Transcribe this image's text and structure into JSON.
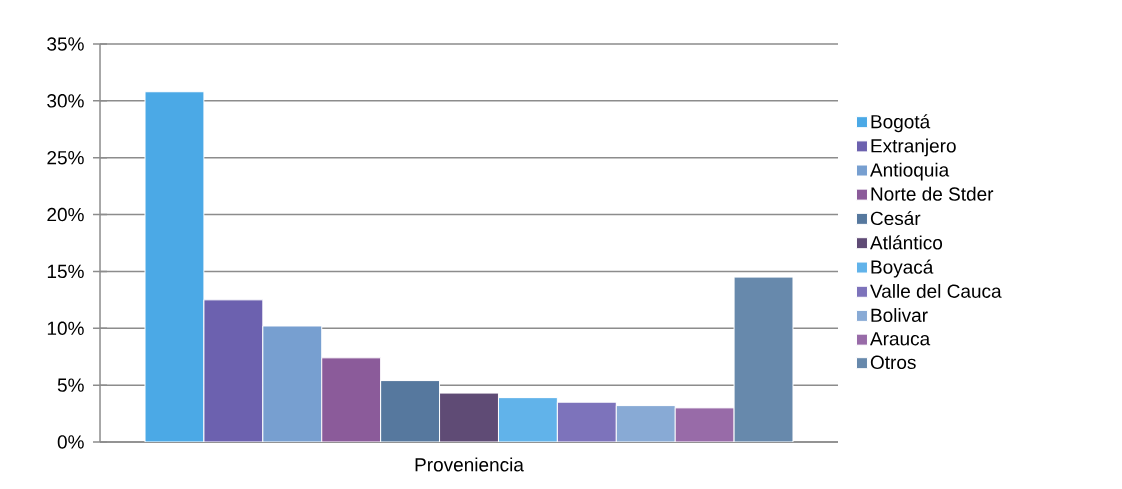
{
  "chart_data": {
    "type": "bar",
    "categories": [
      "Proveniencia"
    ],
    "series": [
      {
        "name": "Bogotá",
        "color": "#4ba9e6",
        "values": [
          30.8
        ]
      },
      {
        "name": "Extranjero",
        "color": "#6c61af",
        "values": [
          12.5
        ]
      },
      {
        "name": "Antioquia",
        "color": "#779fd0",
        "values": [
          10.2
        ]
      },
      {
        "name": "Norte de Stder",
        "color": "#8b5b9a",
        "values": [
          7.4
        ]
      },
      {
        "name": "Cesár",
        "color": "#56789e",
        "values": [
          5.4
        ]
      },
      {
        "name": "Atlántico",
        "color": "#5f4b75",
        "values": [
          4.3
        ]
      },
      {
        "name": "Boyacá",
        "color": "#61b3ea",
        "values": [
          3.9
        ]
      },
      {
        "name": "Valle del Cauca",
        "color": "#7d73bb",
        "values": [
          3.5
        ]
      },
      {
        "name": "Bolivar",
        "color": "#88aad5",
        "values": [
          3.2
        ]
      },
      {
        "name": "Arauca",
        "color": "#986ba8",
        "values": [
          3.0
        ]
      },
      {
        "name": "Otros",
        "color": "#6789ac",
        "values": [
          14.5
        ]
      }
    ],
    "ylim": [
      0,
      35
    ],
    "yticks": [
      {
        "value": 0,
        "label": "0%"
      },
      {
        "value": 5,
        "label": "5%"
      },
      {
        "value": 10,
        "label": "10%"
      },
      {
        "value": 15,
        "label": "15%"
      },
      {
        "value": 20,
        "label": "20%"
      },
      {
        "value": 25,
        "label": "25%"
      },
      {
        "value": 30,
        "label": "30%"
      },
      {
        "value": 35,
        "label": "35%"
      }
    ],
    "grid": "y",
    "legend": "right"
  }
}
